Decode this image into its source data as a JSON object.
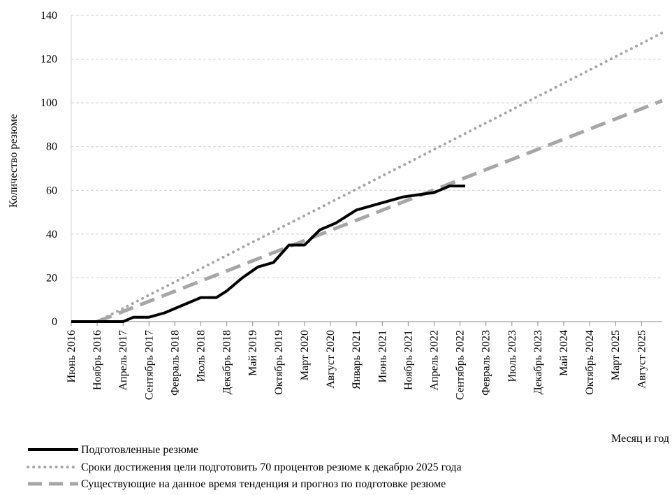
{
  "chart_data": {
    "type": "line",
    "title": "",
    "xlabel": "Месяц и год",
    "ylabel": "Количество резюме",
    "ylim": [
      0,
      140
    ],
    "yticks": [
      0,
      20,
      40,
      60,
      80,
      100,
      120,
      140
    ],
    "grid": "horizontal-dashed",
    "legend_position": "bottom",
    "x_tick_labels": [
      "Июнь 2016",
      "Ноябрь 2016",
      "Апрель 2017",
      "Сентябрь 2017",
      "Февраль 2018",
      "Июль 2018",
      "Декабрь 2018",
      "Май 2019",
      "Октябрь 2019",
      "Март 2020",
      "Август 2020",
      "Январь 2021",
      "Июнь 2021",
      "Ноябрь 2021",
      "Апрель 2022",
      "Сентябрь 2022",
      "Февраль 2023",
      "Июль 2023",
      "Декабрь 2023",
      "Май 2024",
      "Октябрь 2024",
      "Март 2025",
      "Август 2025"
    ],
    "x_start": "2016-06",
    "x_end": "2025-12",
    "series": [
      {
        "name": "Подготовленные резюме",
        "color": "#000000",
        "style": "solid",
        "points": [
          {
            "x": "2016-06",
            "y": 0
          },
          {
            "x": "2016-09",
            "y": 0
          },
          {
            "x": "2016-11",
            "y": 0
          },
          {
            "x": "2017-04",
            "y": 0
          },
          {
            "x": "2017-06",
            "y": 2
          },
          {
            "x": "2017-09",
            "y": 2
          },
          {
            "x": "2017-12",
            "y": 4
          },
          {
            "x": "2018-03",
            "y": 7
          },
          {
            "x": "2018-07",
            "y": 11
          },
          {
            "x": "2018-10",
            "y": 11
          },
          {
            "x": "2018-12",
            "y": 14
          },
          {
            "x": "2019-03",
            "y": 20
          },
          {
            "x": "2019-06",
            "y": 25
          },
          {
            "x": "2019-09",
            "y": 27
          },
          {
            "x": "2019-12",
            "y": 35
          },
          {
            "x": "2020-03",
            "y": 35
          },
          {
            "x": "2020-06",
            "y": 42
          },
          {
            "x": "2020-09",
            "y": 45
          },
          {
            "x": "2021-01",
            "y": 51
          },
          {
            "x": "2021-04",
            "y": 53
          },
          {
            "x": "2021-07",
            "y": 55
          },
          {
            "x": "2021-10",
            "y": 57
          },
          {
            "x": "2022-01",
            "y": 58
          },
          {
            "x": "2022-04",
            "y": 59
          },
          {
            "x": "2022-07",
            "y": 62
          },
          {
            "x": "2022-10",
            "y": 62
          }
        ]
      },
      {
        "name": "Сроки достижения цели подготовить 70 процентов резюме к декабрю 2025 года",
        "color": "#a6a6a6",
        "style": "dotted",
        "points": [
          {
            "x": "2016-11",
            "y": 0
          },
          {
            "x": "2025-12",
            "y": 132
          }
        ]
      },
      {
        "name": "Существующие на данное время тенденция и прогноз по подготовке резюме",
        "color": "#a6a6a6",
        "style": "dashed",
        "points": [
          {
            "x": "2016-11",
            "y": 0
          },
          {
            "x": "2025-12",
            "y": 101
          }
        ]
      }
    ]
  }
}
